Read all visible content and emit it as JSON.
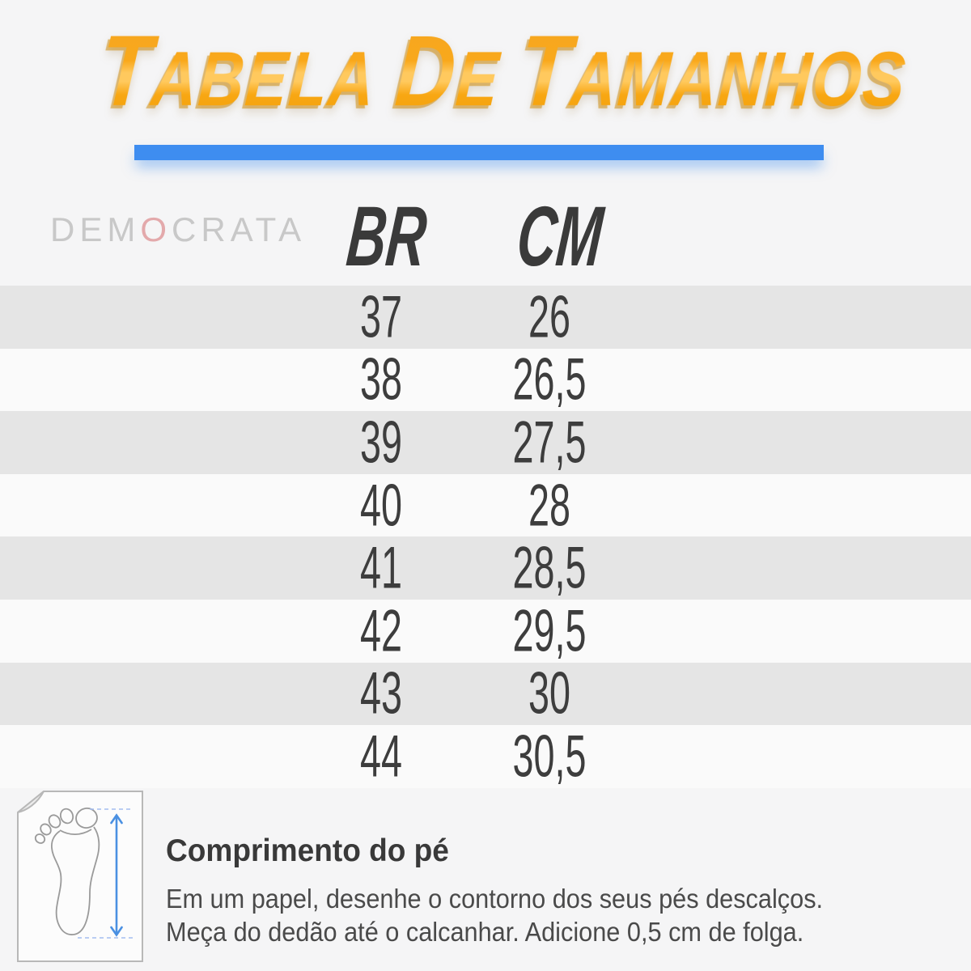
{
  "page": {
    "background_color": "#f5f5f6"
  },
  "header": {
    "title": "Tabela de Tamanhos",
    "title_gradient": [
      "#f5a622",
      "#f9a81b",
      "#ffc95e",
      "#f8a713",
      "#ef9c05"
    ],
    "underline_color": "#3e8df0"
  },
  "brand": {
    "text": "DEMOCRATA",
    "accent_letter_index": 3,
    "color": "#c8c8c8",
    "accent_color": "#e3a9ab"
  },
  "table": {
    "columns": [
      {
        "id": "br",
        "label": "BR"
      },
      {
        "id": "cm",
        "label": "CM"
      }
    ],
    "rows": [
      {
        "br": "37",
        "cm": "26"
      },
      {
        "br": "38",
        "cm": "26,5"
      },
      {
        "br": "39",
        "cm": "27,5"
      },
      {
        "br": "40",
        "cm": "28"
      },
      {
        "br": "41",
        "cm": "28,5"
      },
      {
        "br": "42",
        "cm": "29,5"
      },
      {
        "br": "43",
        "cm": "30"
      },
      {
        "br": "44",
        "cm": "30,5"
      }
    ],
    "stripe_color_odd": "#e5e5e5",
    "stripe_color_even": "#fafafa",
    "header_color": "#3a3a3a",
    "text_color": "#3d3d3d"
  },
  "chart_data": {
    "type": "table",
    "title": "Tabela de Tamanhos",
    "columns": [
      "BR",
      "CM"
    ],
    "rows": [
      [
        "37",
        "26"
      ],
      [
        "38",
        "26,5"
      ],
      [
        "39",
        "27,5"
      ],
      [
        "40",
        "28"
      ],
      [
        "41",
        "28,5"
      ],
      [
        "42",
        "29,5"
      ],
      [
        "43",
        "30"
      ],
      [
        "44",
        "30,5"
      ]
    ]
  },
  "footer": {
    "heading": "Comprimento do pé",
    "line1": "Em um papel, desenhe o contorno dos seus pés descalços.",
    "line2": "Meça do dedão até o calcanhar. Adicione 0,5 cm de folga.",
    "icon": "foot-measure-icon",
    "arrow_color": "#4a90e2"
  }
}
